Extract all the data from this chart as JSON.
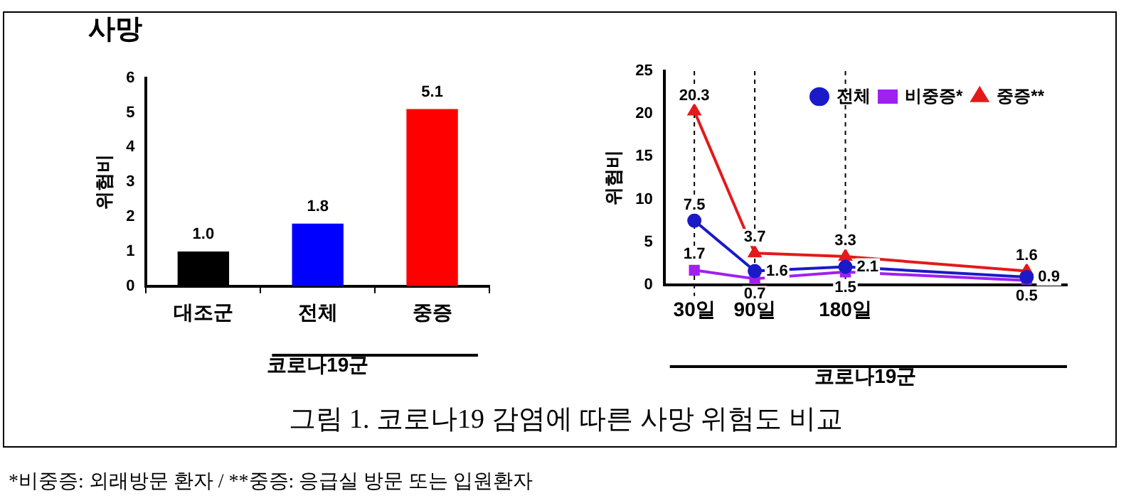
{
  "chart_data": [
    {
      "type": "bar",
      "title": "사망",
      "ylabel": "위험비",
      "xlabel": "코로나19군",
      "categories": [
        "대조군",
        "전체",
        "중증"
      ],
      "values": [
        1.0,
        1.8,
        5.1
      ],
      "value_labels": [
        "1.0",
        "1.8",
        "5.1"
      ],
      "colors": [
        "#000000",
        "#0000ff",
        "#ff0000"
      ],
      "ylim": [
        0,
        6
      ],
      "yticks": [
        0,
        1,
        2,
        3,
        4,
        5,
        6
      ],
      "grid": false,
      "legend": false,
      "annotations": [
        "그림 1. 코로나19 감염에 따른 사망 위험도 비교",
        "*비중증: 외래방문 환자 / **중증: 응급실 방문 또는 입원환자"
      ]
    },
    {
      "type": "line",
      "ylabel": "위험비",
      "xlabel": "코로나19군",
      "x": [
        30,
        90,
        180,
        360
      ],
      "xlim": [
        0,
        400
      ],
      "xticks": [
        {
          "value": 30,
          "label": "30일"
        },
        {
          "value": 90,
          "label": "90일"
        },
        {
          "value": 180,
          "label": "180일"
        }
      ],
      "ylim": [
        0,
        25
      ],
      "yticks": [
        0,
        5,
        10,
        15,
        20,
        25
      ],
      "grid": false,
      "legend": "top right",
      "data_labels": true,
      "series": [
        {
          "name": "전체",
          "color": "#1a1ac8",
          "marker": "circle",
          "values": [
            7.5,
            1.6,
            2.1,
            0.9
          ]
        },
        {
          "name": "비중증*",
          "color": "#a020f0",
          "marker": "square",
          "values": [
            1.7,
            0.7,
            1.5,
            0.5
          ]
        },
        {
          "name": "중증**",
          "color": "#e31a1a",
          "marker": "triangle",
          "values": [
            20.3,
            3.7,
            3.3,
            1.6
          ]
        }
      ],
      "ref_lines": [
        {
          "axis": "x",
          "value": 30,
          "line_style": "dashed",
          "color": "#000000"
        },
        {
          "axis": "x",
          "value": 90,
          "line_style": "dashed",
          "color": "#000000"
        },
        {
          "axis": "x",
          "value": 180,
          "line_style": "dashed",
          "color": "#000000"
        }
      ]
    }
  ]
}
